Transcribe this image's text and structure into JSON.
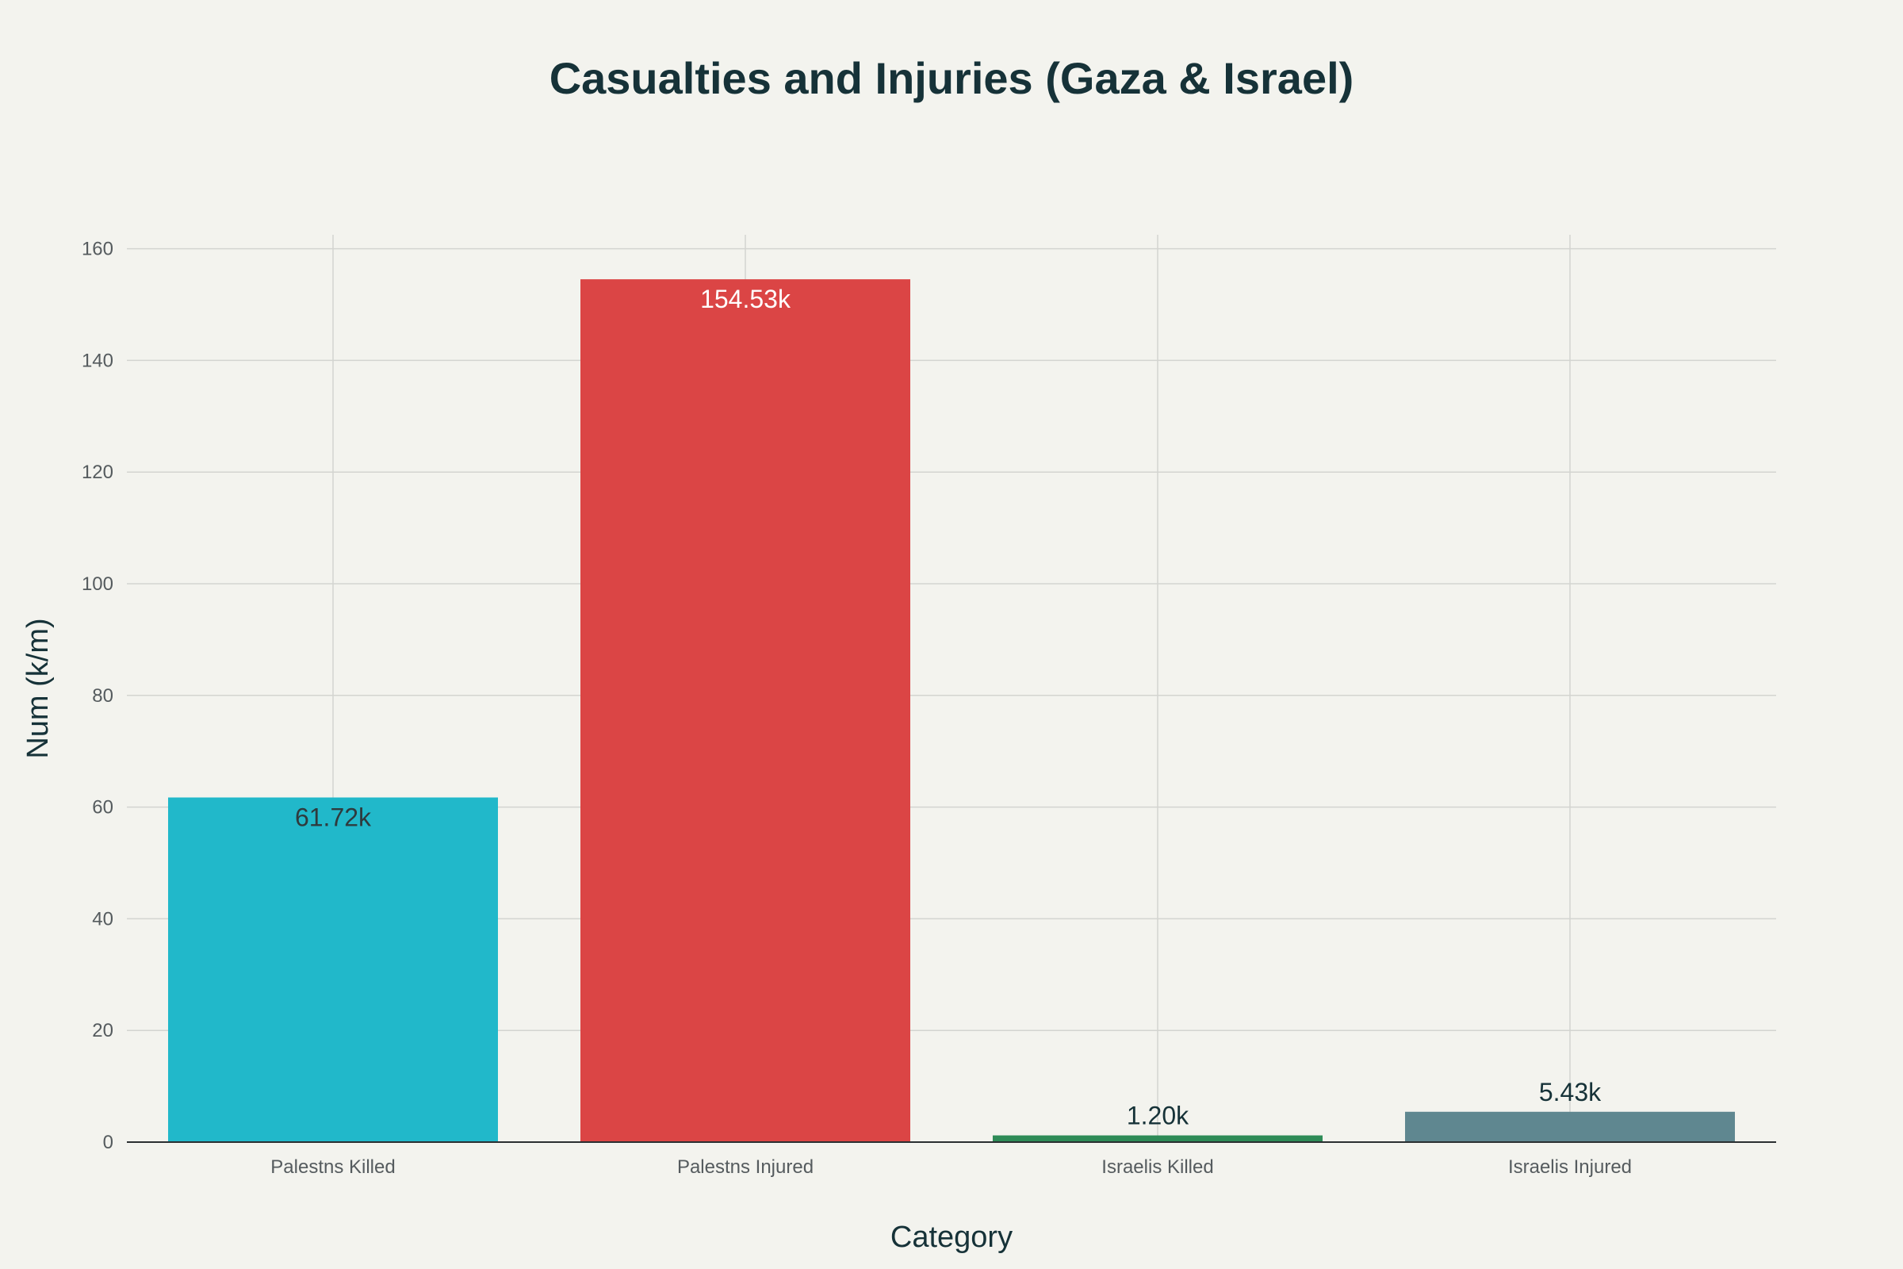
{
  "chart_data": {
    "type": "bar",
    "title": "Casualties and Injuries (Gaza & Israel)",
    "xlabel": "Category",
    "ylabel": "Num (k/m)",
    "categories": [
      "Palestns Killed",
      "Palestns Injured",
      "Israelis Killed",
      "Israelis Injured"
    ],
    "values": [
      61.72,
      154.53,
      1.2,
      5.43
    ],
    "data_labels": [
      "61.72k",
      "154.53k",
      "1.20k",
      "5.43k"
    ],
    "colors": [
      "#21b8ca",
      "#db4545",
      "#2e8b57",
      "#5f8790"
    ],
    "ylim": [
      0,
      162.5
    ],
    "yticks": [
      0,
      20,
      40,
      60,
      80,
      100,
      120,
      140,
      160
    ],
    "grid": true,
    "legend": "none"
  }
}
